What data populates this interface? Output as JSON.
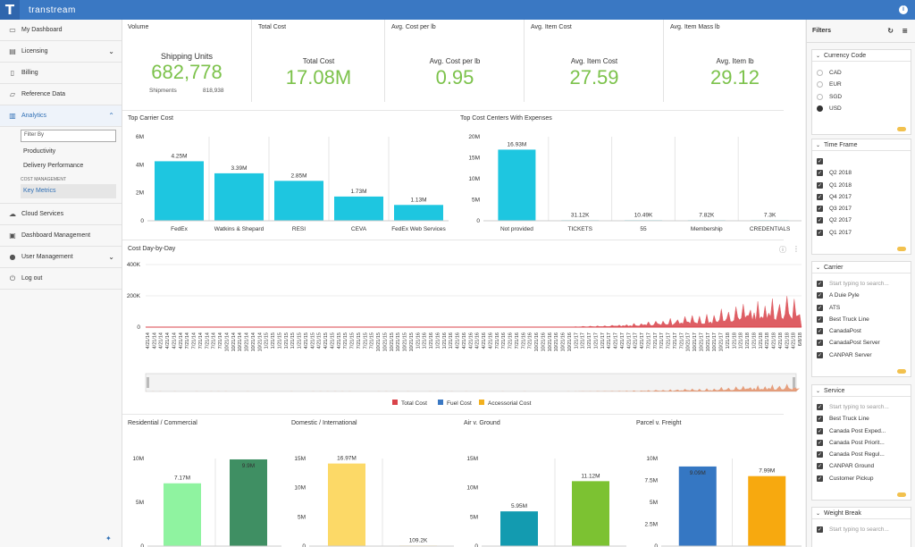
{
  "app": {
    "logo": "T",
    "title": "transtream",
    "info_icon": "info-icon"
  },
  "sidebar": {
    "items": [
      {
        "label": "My Dashboard",
        "icon": "monitor-icon"
      },
      {
        "label": "Licensing",
        "icon": "license-icon"
      },
      {
        "label": "Billing",
        "icon": "billing-icon"
      },
      {
        "label": "Reference Data",
        "icon": "folder-icon"
      },
      {
        "label": "Analytics",
        "icon": "chart-icon"
      },
      {
        "label": "Cloud Services",
        "icon": "cloud-icon"
      },
      {
        "label": "Dashboard Management",
        "icon": "dashboard-icon"
      },
      {
        "label": "User Management",
        "icon": "users-icon"
      },
      {
        "label": "Log out",
        "icon": "power-icon"
      }
    ],
    "filter_placeholder": "Filter By",
    "analytics_sub": [
      "Productivity",
      "Delivery Performance"
    ],
    "cost_heading": "COST MANAGEMENT",
    "cost_sub": "Key Metrics"
  },
  "kpis": [
    {
      "title": "Volume",
      "label": "Shipping Units",
      "value": "682,778",
      "sub_label": "Shipments",
      "sub_value": "818,938"
    },
    {
      "title": "Total Cost",
      "label": "Total Cost",
      "value": "17.08M"
    },
    {
      "title": "Avg. Cost per lb",
      "label": "Avg. Cost per lb",
      "value": "0.95"
    },
    {
      "title": "Avg. Item Cost",
      "label": "Avg. Item Cost",
      "value": "27.59"
    },
    {
      "title": "Avg. Item Mass lb",
      "label": "Avg. Item lb",
      "value": "29.12"
    }
  ],
  "colors": {
    "accent": "#3a78c3",
    "kpi_green": "#7cc24b",
    "bar_cyan": "#1ec6e0",
    "total_cost": "#d9434a",
    "fuel_cost": "#3a78c3",
    "accessorial_cost": "#f2b01e",
    "light_green": "#8ff3a0",
    "dark_green": "#3f8f63",
    "yellow": "#fcd967",
    "teal": "#139bb0",
    "green": "#7cc232",
    "blue": "#3577c3",
    "orange": "#f7a90f"
  },
  "charts": {
    "carrier": {
      "title": "Top Carrier Cost",
      "categories": [
        "FedEx",
        "Watkins & Shepard",
        "RESI",
        "CEVA",
        "FedEx Web Services"
      ],
      "values": [
        4.25,
        3.39,
        2.85,
        1.73,
        1.13
      ],
      "labels": [
        "4.25M",
        "3.39M",
        "2.85M",
        "1.73M",
        "1.13M"
      ],
      "ticks": [
        "0",
        "2M",
        "4M",
        "6M"
      ],
      "ylim": [
        0,
        6
      ]
    },
    "centers": {
      "title": "Top Cost Centers With Expenses",
      "categories": [
        "Not provided",
        "TICKETS",
        "55",
        "Membership",
        "CREDENTIALS"
      ],
      "values": [
        16.93,
        0.03112,
        0.01049,
        0.00782,
        0.0073
      ],
      "labels": [
        "16.93M",
        "31.12K",
        "10.49K",
        "7.82K",
        "7.3K"
      ],
      "ticks": [
        "0",
        "5M",
        "10M",
        "15M",
        "20M"
      ],
      "ylim": [
        0,
        20
      ]
    },
    "daily": {
      "title": "Cost Day-by-Day",
      "ticks": [
        "0",
        "200K",
        "400K"
      ],
      "dates": [
        "4/21/14",
        "7/21/14",
        "10/21/14",
        "1/21/15",
        "4/21/15",
        "7/21/15",
        "10/21/15",
        "1/21/16",
        "4/21/16",
        "7/21/16",
        "10/21/16",
        "1/21/17",
        "4/21/17",
        "7/21/17",
        "10/21/17",
        "1/21/18",
        "4/21/18",
        "6/8/18"
      ],
      "legend": [
        "Total Cost",
        "Fuel Cost",
        "Accessorial Cost"
      ]
    },
    "residential": {
      "title": "Residential / Commercial",
      "values": [
        7.17,
        9.9
      ],
      "labels": [
        "7.17M",
        "9.9M"
      ],
      "ticks": [
        "0",
        "5M",
        "10M"
      ],
      "ylim": [
        0,
        10
      ]
    },
    "domestic": {
      "title": "Domestic / International",
      "values": [
        16.97,
        0.1092
      ],
      "labels": [
        "16.97M",
        "109.2K"
      ],
      "ticks": [
        "0",
        "5M",
        "10M",
        "15M"
      ],
      "ylim": [
        0,
        18
      ]
    },
    "air": {
      "title": "Air v. Ground",
      "values": [
        5.95,
        11.12
      ],
      "labels": [
        "5.95M",
        "11.12M"
      ],
      "ticks": [
        "0",
        "5M",
        "10M",
        "15M"
      ],
      "ylim": [
        0,
        15
      ]
    },
    "parcel": {
      "title": "Parcel v. Freight",
      "values": [
        9.09,
        7.99
      ],
      "labels": [
        "9.09M",
        "7.99M"
      ],
      "ticks": [
        "0",
        "2.5M",
        "5M",
        "7.5M",
        "10M"
      ],
      "ylim": [
        0,
        10
      ]
    }
  },
  "filters": {
    "title": "Filters",
    "currency": {
      "title": "Currency Code",
      "options": [
        "CAD",
        "EUR",
        "SGD",
        "USD"
      ],
      "selected": "USD"
    },
    "timeframe": {
      "title": "Time Frame",
      "options": [
        "Q2 2018",
        "Q1 2018",
        "Q4 2017",
        "Q3 2017",
        "Q2 2017",
        "Q1 2017"
      ]
    },
    "carrier": {
      "title": "Carrier",
      "search": "Start typing to search...",
      "options": [
        "A Duie Pyle",
        "ATS",
        "Best Truck Line",
        "CanadaPost",
        "CanadaPost Server",
        "CANPAR Server"
      ]
    },
    "service": {
      "title": "Service",
      "search": "Start typing to search...",
      "options": [
        "Best Truck Line",
        "Canada Post Exped...",
        "Canada Post Priorit...",
        "Canada Post Regul...",
        "CANPAR Ground",
        "Customer Pickup"
      ]
    },
    "weight": {
      "title": "Weight Break",
      "search": "Start typing to search..."
    }
  }
}
